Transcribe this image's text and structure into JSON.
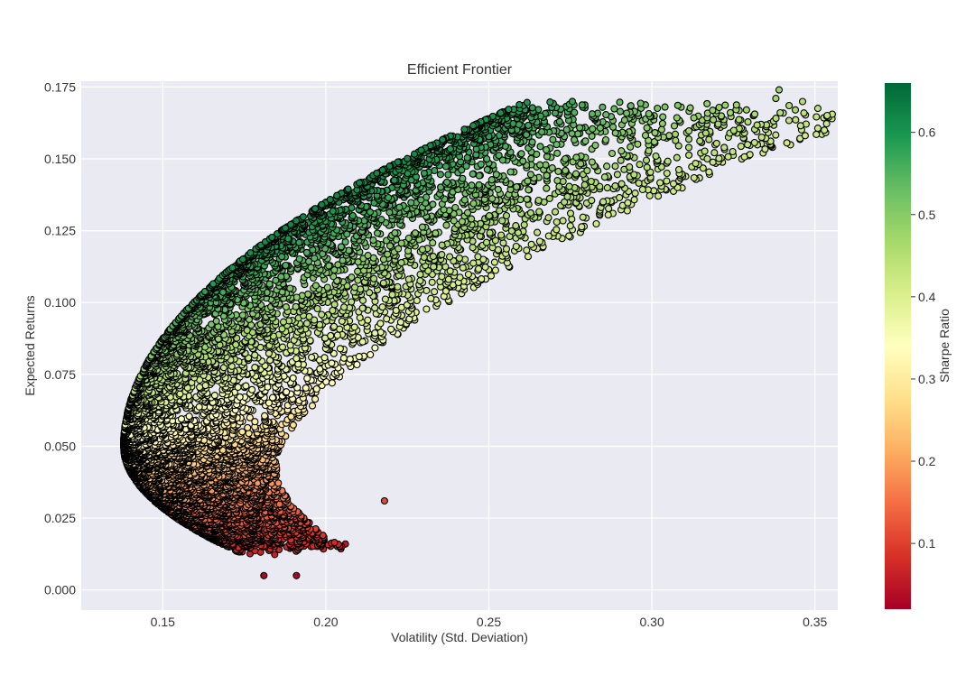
{
  "chart_data": {
    "type": "scatter",
    "title": "Efficient Frontier",
    "xlabel": "Volatility (Std. Deviation)",
    "ylabel": "Expected Returns",
    "xlim": [
      0.125,
      0.357
    ],
    "ylim": [
      -0.007,
      0.177
    ],
    "x_ticks": [
      0.15,
      0.2,
      0.25,
      0.3,
      0.35
    ],
    "x_tick_labels": [
      "0.15",
      "0.20",
      "0.25",
      "0.30",
      "0.35"
    ],
    "y_ticks": [
      0.0,
      0.025,
      0.05,
      0.075,
      0.1,
      0.125,
      0.15,
      0.175
    ],
    "y_tick_labels": [
      "0.000",
      "0.025",
      "0.050",
      "0.075",
      "0.100",
      "0.125",
      "0.150",
      "0.175"
    ],
    "grid": true,
    "background": "#eaeaf2",
    "marker_edge_color": "#000000",
    "colormap": "RdYlGn",
    "colorbar": {
      "label": "Sharpe Ratio",
      "range": [
        0.02,
        0.66
      ],
      "ticks": [
        0.1,
        0.2,
        0.3,
        0.4,
        0.5,
        0.6
      ],
      "tick_labels": [
        "0.1",
        "0.2",
        "0.3",
        "0.4",
        "0.5",
        "0.6"
      ]
    },
    "frontier_approx": {
      "min_variance_point": {
        "x": 0.138,
        "y": 0.05
      },
      "upper_edge": [
        [
          0.138,
          0.05
        ],
        [
          0.145,
          0.08
        ],
        [
          0.155,
          0.093
        ],
        [
          0.165,
          0.106
        ],
        [
          0.18,
          0.117
        ],
        [
          0.2,
          0.129
        ],
        [
          0.225,
          0.14
        ],
        [
          0.25,
          0.149
        ],
        [
          0.275,
          0.156
        ],
        [
          0.3,
          0.163
        ],
        [
          0.34,
          0.174
        ]
      ],
      "lower_edge_sample": [
        [
          0.16,
          0.005
        ],
        [
          0.17,
          0.005
        ],
        [
          0.185,
          0.006
        ],
        [
          0.205,
          0.016
        ],
        [
          0.218,
          0.031
        ],
        [
          0.23,
          0.07
        ],
        [
          0.26,
          0.106
        ],
        [
          0.3,
          0.135
        ]
      ]
    },
    "outlier_points": [
      {
        "x": 0.339,
        "y": 0.174,
        "sharpe": 0.48
      },
      {
        "x": 0.344,
        "y": 0.167,
        "sharpe": 0.46
      },
      {
        "x": 0.338,
        "y": 0.171,
        "sharpe": 0.47
      },
      {
        "x": 0.329,
        "y": 0.167,
        "sharpe": 0.47
      },
      {
        "x": 0.321,
        "y": 0.161,
        "sharpe": 0.46
      },
      {
        "x": 0.317,
        "y": 0.15,
        "sharpe": 0.44
      },
      {
        "x": 0.218,
        "y": 0.031,
        "sharpe": 0.11
      },
      {
        "x": 0.206,
        "y": 0.016,
        "sharpe": 0.05
      },
      {
        "x": 0.191,
        "y": 0.005,
        "sharpe": 0.03
      },
      {
        "x": 0.181,
        "y": 0.005,
        "sharpe": 0.03
      }
    ],
    "sample_count_approx": 10000
  }
}
